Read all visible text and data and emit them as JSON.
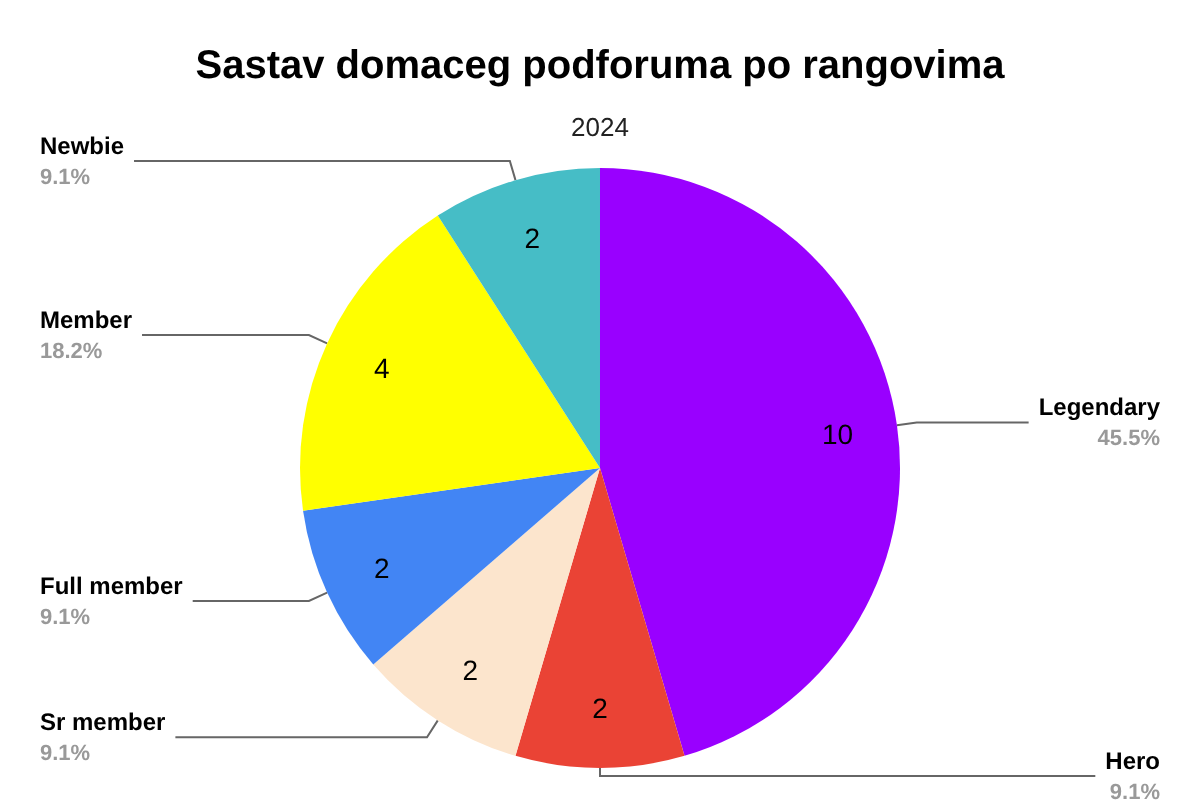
{
  "chart_data": {
    "type": "pie",
    "title": "Sastav domaceg podforuma po rangovima",
    "subtitle": "2024",
    "categories": [
      "Legendary",
      "Hero",
      "Sr member",
      "Full member",
      "Member",
      "Newbie"
    ],
    "values": [
      10,
      2,
      2,
      2,
      4,
      2
    ],
    "colors": [
      "#9900ff",
      "#ea4335",
      "#fce5cd",
      "#4285f4",
      "#ffff00",
      "#46bdc6"
    ],
    "annotations": [
      {
        "text": "45.5%",
        "x": "Legendary"
      },
      {
        "text": "9.1%",
        "x": "Hero"
      },
      {
        "text": "9.1%",
        "x": "Sr member"
      },
      {
        "text": "9.1%",
        "x": "Full member"
      },
      {
        "text": "18.2%",
        "x": "Member"
      },
      {
        "text": "9.1%",
        "x": "Newbie"
      }
    ],
    "data_labels": true,
    "legend": false
  }
}
